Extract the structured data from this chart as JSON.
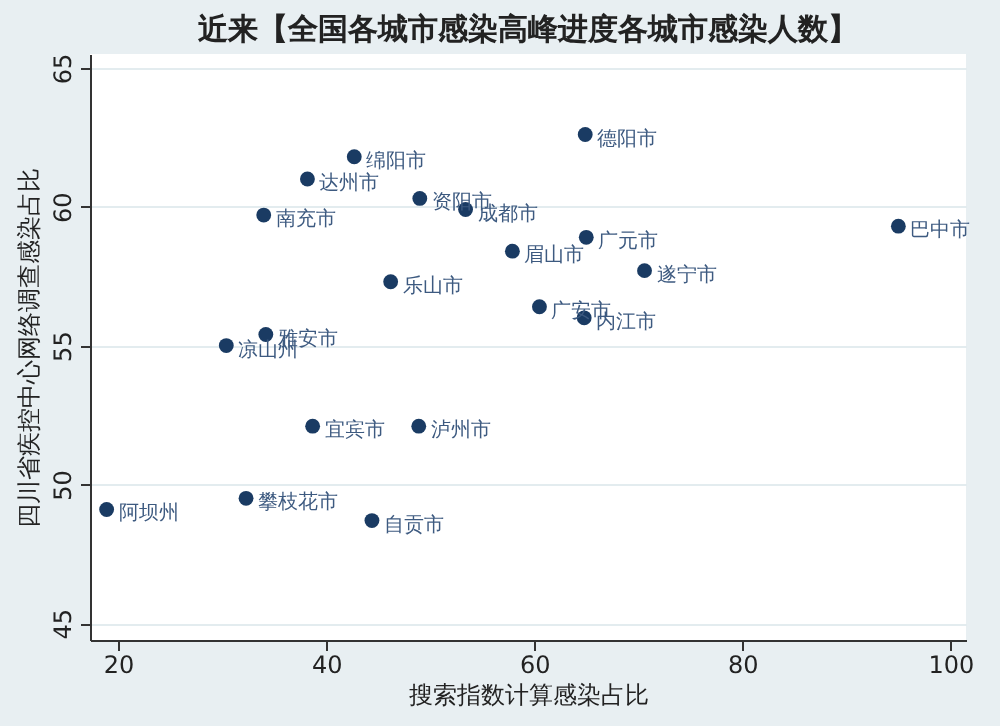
{
  "chart_data": {
    "type": "scatter",
    "title": "近来【全国各城市感染高峰进度各城市感染人数】",
    "xlabel": "搜索指数计算感染占比",
    "ylabel": "四川省疾控中心网络调查感染占比",
    "xlim": [
      17.3,
      101.5
    ],
    "xticks": [
      20,
      40,
      60,
      80,
      100
    ],
    "ylim": [
      44.4,
      65.5
    ],
    "yticks": [
      45,
      50,
      55,
      60,
      65
    ],
    "grid": "y",
    "marker": "circle",
    "series": [
      {
        "name": "德阳市",
        "color": "#1a3b63",
        "x": [
          64.9
        ],
        "values": [
          62.6
        ]
      },
      {
        "name": "绵阳市",
        "color": "#1a3b63",
        "x": [
          42.7
        ],
        "values": [
          61.8
        ]
      },
      {
        "name": "达州市",
        "color": "#1a3b63",
        "x": [
          38.2
        ],
        "values": [
          61.0
        ]
      },
      {
        "name": "资阳市",
        "color": "#1a3b63",
        "x": [
          49.0
        ],
        "values": [
          60.3
        ]
      },
      {
        "name": "成都市",
        "color": "#1a3b63",
        "x": [
          53.4
        ],
        "values": [
          59.9
        ]
      },
      {
        "name": "南充市",
        "color": "#1a3b63",
        "x": [
          34.0
        ],
        "values": [
          59.7
        ]
      },
      {
        "name": "巴中市",
        "color": "#1a3b63",
        "x": [
          95.0
        ],
        "values": [
          59.3
        ]
      },
      {
        "name": "广元市",
        "color": "#1a3b63",
        "x": [
          65.0
        ],
        "values": [
          58.9
        ]
      },
      {
        "name": "眉山市",
        "color": "#1a3b63",
        "x": [
          57.9
        ],
        "values": [
          58.4
        ]
      },
      {
        "name": "遂宁市",
        "color": "#1a3b63",
        "x": [
          70.6
        ],
        "values": [
          57.7
        ]
      },
      {
        "name": "乐山市",
        "color": "#1a3b63",
        "x": [
          46.2
        ],
        "values": [
          57.3
        ]
      },
      {
        "name": "广安市",
        "color": "#1a3b63",
        "x": [
          60.5
        ],
        "values": [
          56.4
        ]
      },
      {
        "name": "内江市",
        "color": "#1a3b63",
        "x": [
          64.8
        ],
        "values": [
          56.0
        ]
      },
      {
        "name": "雅安市",
        "color": "#1a3b63",
        "x": [
          34.2
        ],
        "values": [
          55.4
        ]
      },
      {
        "name": "凉山州",
        "color": "#1a3b63",
        "x": [
          30.4
        ],
        "values": [
          55.0
        ]
      },
      {
        "name": "宜宾市",
        "color": "#1a3b63",
        "x": [
          38.7
        ],
        "values": [
          52.1
        ]
      },
      {
        "name": "泸州市",
        "color": "#1a3b63",
        "x": [
          48.9
        ],
        "values": [
          52.1
        ]
      },
      {
        "name": "阿坝州",
        "color": "#1a3b63",
        "x": [
          18.9
        ],
        "values": [
          49.1
        ]
      },
      {
        "name": "攀枝花市",
        "color": "#1a3b63",
        "x": [
          32.3
        ],
        "values": [
          49.5
        ]
      },
      {
        "name": "自贡市",
        "color": "#1a3b63",
        "x": [
          44.4
        ],
        "values": [
          48.7
        ]
      }
    ]
  }
}
